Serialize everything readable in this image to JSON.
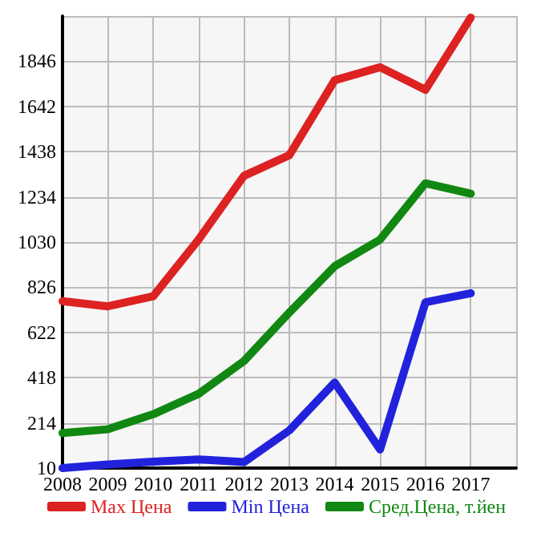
{
  "chart_data": {
    "type": "line",
    "x": [
      2008,
      2009,
      2010,
      2011,
      2012,
      2013,
      2014,
      2015,
      2016,
      2017
    ],
    "series": [
      {
        "name": "Max Цена",
        "color": "#dd2222",
        "values": [
          763,
          740,
          785,
          1041,
          1329,
          1422,
          1760,
          1819,
          1717,
          2043
        ]
      },
      {
        "name": "Min Цена",
        "color": "#2222dd",
        "values": [
          10,
          26,
          39,
          49,
          37,
          180,
          396,
          94,
          758,
          799
        ]
      },
      {
        "name": "Сред.Цена, т.йен",
        "color": "#118811",
        "values": [
          168,
          185,
          253,
          345,
          493,
          712,
          921,
          1041,
          1295,
          1248
        ]
      }
    ],
    "xlim": [
      2008,
      2018
    ],
    "xticks": [
      2008,
      2009,
      2010,
      2011,
      2012,
      2013,
      2014,
      2015,
      2016,
      2017,
      {
        "value": 2018,
        "label": null
      }
    ],
    "ylim": [
      10,
      2050
    ],
    "yticks": [
      10,
      214,
      418,
      622,
      826,
      1030,
      1234,
      1438,
      1642,
      1846,
      {
        "value": 2050,
        "label": null
      }
    ],
    "grid": true,
    "legend": "bottom",
    "marker": "none",
    "line_style": "solid"
  }
}
